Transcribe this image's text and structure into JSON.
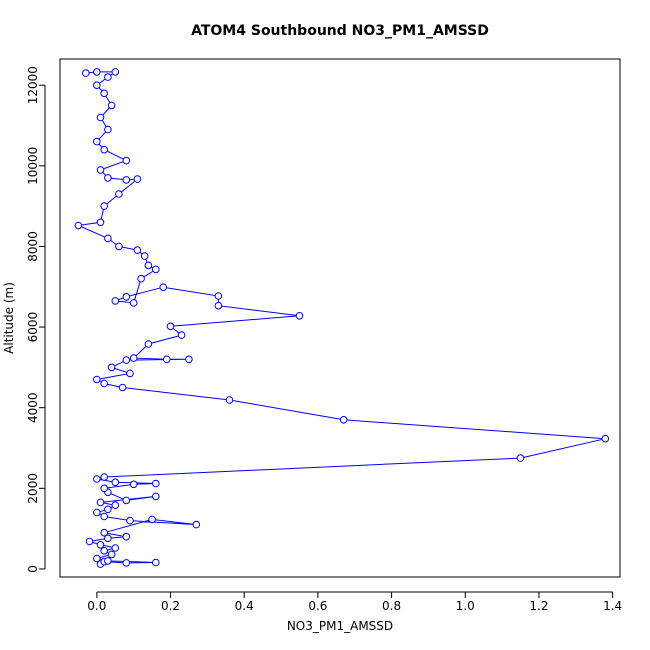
{
  "chart_data": {
    "type": "line",
    "title": "ATOM4 Southbound NO3_PM1_AMSSD",
    "xlabel": "NO3_PM1_AMSSD",
    "ylabel": "Altitude (m)",
    "xlim": [
      -0.1,
      1.42
    ],
    "ylim": [
      -200,
      12650
    ],
    "x_ticks": [
      0.0,
      0.2,
      0.4,
      0.6,
      0.8,
      1.0,
      1.2,
      1.4
    ],
    "x_tick_labels": [
      "0.0",
      "0.2",
      "0.4",
      "0.6",
      "0.8",
      "1.0",
      "1.2",
      "1.4"
    ],
    "y_ticks": [
      0,
      2000,
      4000,
      6000,
      8000,
      10000,
      12000
    ],
    "y_tick_labels": [
      "0",
      "2000",
      "4000",
      "6000",
      "8000",
      "10000",
      "12000"
    ],
    "grid": false,
    "legend": "none",
    "colors": {
      "series": "#0000ff",
      "axis": "#000000"
    },
    "series": [
      {
        "marker": "open-circle",
        "points": [
          [
            0.01,
            120
          ],
          [
            0.02,
            180
          ],
          [
            0.08,
            150
          ],
          [
            0.16,
            160
          ],
          [
            0.03,
            200
          ],
          [
            0.0,
            260
          ],
          [
            0.04,
            360
          ],
          [
            0.02,
            450
          ],
          [
            0.05,
            520
          ],
          [
            0.01,
            600
          ],
          [
            -0.02,
            680
          ],
          [
            0.03,
            760
          ],
          [
            0.08,
            800
          ],
          [
            0.02,
            900
          ],
          [
            0.15,
            1230
          ],
          [
            0.27,
            1100
          ],
          [
            0.09,
            1200
          ],
          [
            0.02,
            1300
          ],
          [
            0.0,
            1400
          ],
          [
            0.03,
            1480
          ],
          [
            0.05,
            1580
          ],
          [
            0.01,
            1650
          ],
          [
            0.16,
            1800
          ],
          [
            0.08,
            1700
          ],
          [
            0.03,
            1900
          ],
          [
            0.02,
            2000
          ],
          [
            0.1,
            2100
          ],
          [
            0.16,
            2120
          ],
          [
            0.05,
            2150
          ],
          [
            0.0,
            2230
          ],
          [
            0.02,
            2280
          ],
          [
            1.15,
            2750
          ],
          [
            1.38,
            3230
          ],
          [
            0.67,
            3700
          ],
          [
            0.36,
            4190
          ],
          [
            0.07,
            4500
          ],
          [
            0.02,
            4600
          ],
          [
            0.0,
            4700
          ],
          [
            0.09,
            4850
          ],
          [
            0.04,
            5000
          ],
          [
            0.08,
            5180
          ],
          [
            0.25,
            5200
          ],
          [
            0.19,
            5200
          ],
          [
            0.1,
            5230
          ],
          [
            0.14,
            5580
          ],
          [
            0.23,
            5800
          ],
          [
            0.2,
            6020
          ],
          [
            0.55,
            6280
          ],
          [
            0.33,
            6530
          ],
          [
            0.33,
            6770
          ],
          [
            0.18,
            6990
          ],
          [
            0.08,
            6750
          ],
          [
            0.05,
            6650
          ],
          [
            0.1,
            6600
          ],
          [
            0.12,
            7200
          ],
          [
            0.16,
            7430
          ],
          [
            0.14,
            7530
          ],
          [
            0.13,
            7760
          ],
          [
            0.11,
            7910
          ],
          [
            0.06,
            8000
          ],
          [
            0.03,
            8200
          ],
          [
            -0.05,
            8520
          ],
          [
            0.01,
            8600
          ],
          [
            0.02,
            9000
          ],
          [
            0.06,
            9300
          ],
          [
            0.11,
            9670
          ],
          [
            0.08,
            9650
          ],
          [
            0.03,
            9700
          ],
          [
            0.01,
            9900
          ],
          [
            0.08,
            10130
          ],
          [
            0.02,
            10400
          ],
          [
            0.0,
            10600
          ],
          [
            0.03,
            10900
          ],
          [
            0.01,
            11200
          ],
          [
            0.04,
            11500
          ],
          [
            0.02,
            11800
          ],
          [
            0.0,
            12000
          ],
          [
            0.03,
            12200
          ],
          [
            0.05,
            12330
          ],
          [
            0.0,
            12330
          ],
          [
            -0.03,
            12300
          ]
        ]
      }
    ]
  }
}
